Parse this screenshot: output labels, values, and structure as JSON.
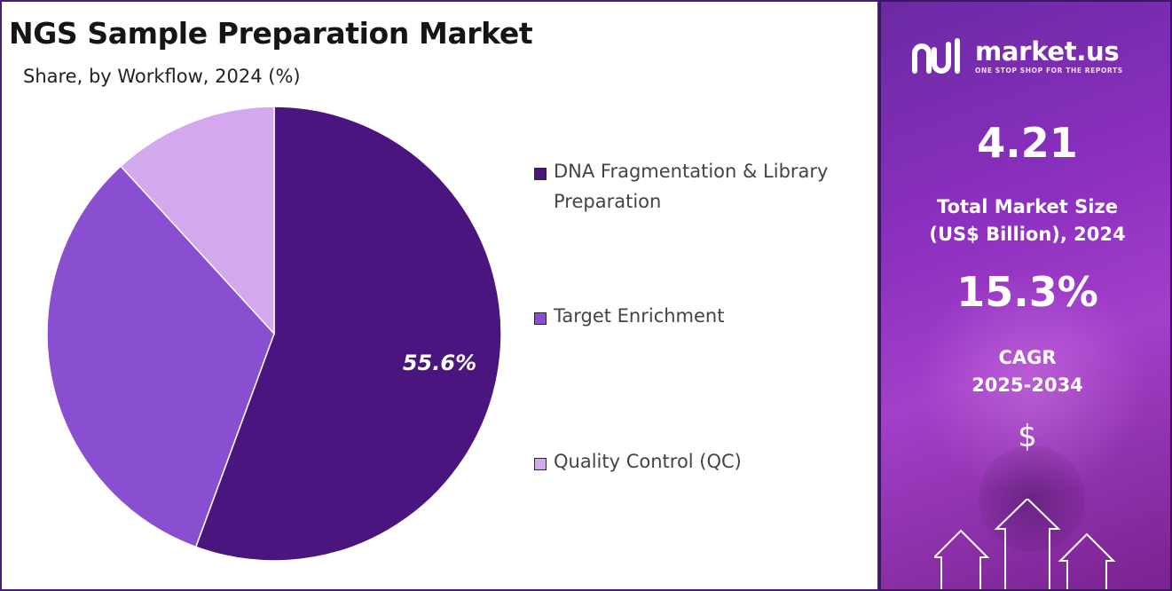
{
  "chart": {
    "title": "NGS Sample Preparation Market",
    "subtitle": "Share, by Workflow, 2024 (%)"
  },
  "chart_data": {
    "type": "pie",
    "title": "NGS Sample Preparation Market",
    "subtitle": "Share, by Workflow, 2024 (%)",
    "categories": [
      "DNA Fragmentation & Library Preparation",
      "Target Enrichment",
      "Quality Control (QC)"
    ],
    "values": [
      55.6,
      32.6,
      11.8
    ],
    "colors": [
      "#4a157e",
      "#8a4fd0",
      "#d3a8ee"
    ],
    "data_labels": [
      "55.6%",
      "",
      ""
    ],
    "legend_position": "right"
  },
  "legend": {
    "items": [
      {
        "line1": "DNA Fragmentation & Library",
        "line2": "Preparation",
        "color": "#4a157e"
      },
      {
        "line1": "Target Enrichment",
        "line2": "",
        "color": "#8a4fd0"
      },
      {
        "line1": "Quality Control (QC)",
        "line2": "",
        "color": "#d3a8ee"
      }
    ]
  },
  "sidebar": {
    "logo": {
      "name": "market.us",
      "tagline": "ONE STOP SHOP FOR THE REPORTS"
    },
    "market_size": {
      "value": "4.21",
      "label_line1": "Total Market Size",
      "label_line2": "(US$ Billion), 2024"
    },
    "cagr": {
      "value": "15.3%",
      "label_line1": "CAGR",
      "label_line2": "2025-2034"
    },
    "currency_symbol": "$",
    "icons": [
      "market-us-logo-icon",
      "up-arrows-icon"
    ]
  }
}
